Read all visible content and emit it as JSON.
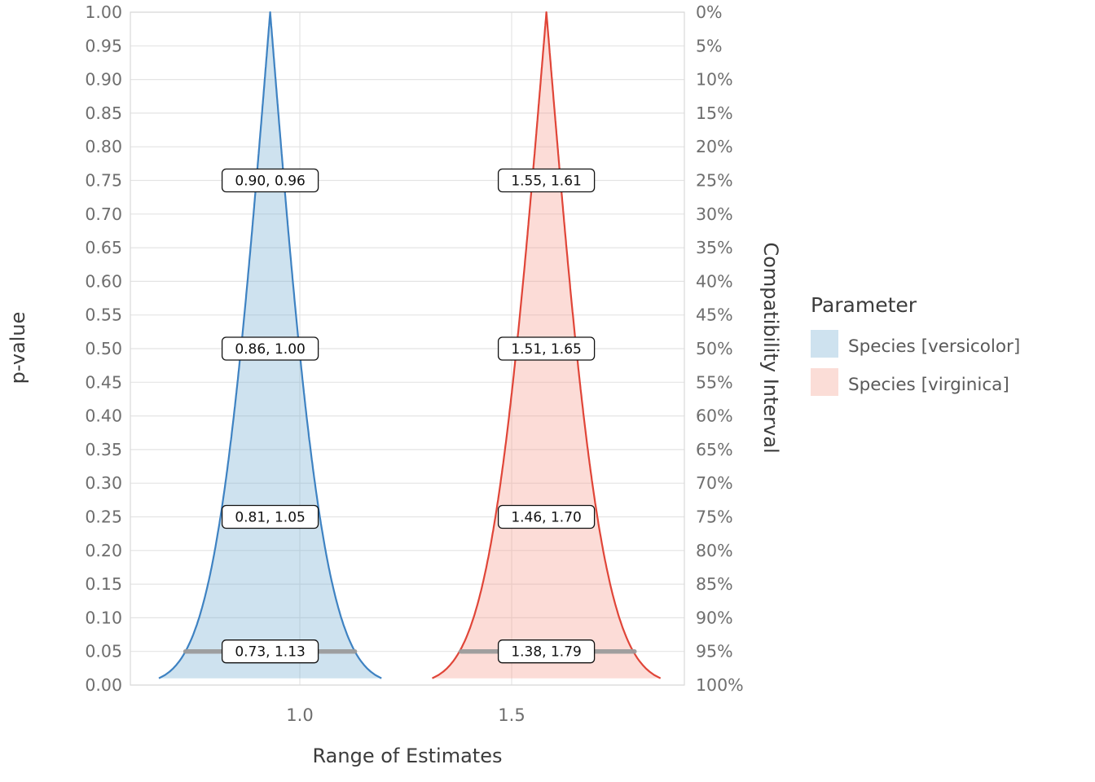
{
  "chart_data": {
    "type": "area",
    "variant": "consonance-pvalue-function",
    "title": "",
    "x_axis": {
      "title": "Range of Estimates",
      "ticks": [
        {
          "value": 1.0,
          "label": "1.0"
        },
        {
          "value": 1.5,
          "label": "1.5"
        }
      ],
      "range": [
        0.6,
        1.908
      ]
    },
    "y_axis_left": {
      "title": "p-value",
      "min": 0.0,
      "max": 1.0,
      "step": 0.05,
      "tick_labels": [
        "1.00",
        "0.95",
        "0.90",
        "0.85",
        "0.80",
        "0.75",
        "0.70",
        "0.65",
        "0.60",
        "0.55",
        "0.50",
        "0.45",
        "0.40",
        "0.35",
        "0.30",
        "0.25",
        "0.20",
        "0.15",
        "0.10",
        "0.05",
        "0.00"
      ]
    },
    "y_axis_right": {
      "title": "Compatibility Interval",
      "tick_labels": [
        "0%",
        "5%",
        "10%",
        "15%",
        "20%",
        "25%",
        "30%",
        "35%",
        "40%",
        "45%",
        "50%",
        "55%",
        "60%",
        "65%",
        "70%",
        "75%",
        "80%",
        "85%",
        "90%",
        "95%",
        "100%"
      ]
    },
    "legend": {
      "title": "Parameter"
    },
    "colors": {
      "grid": "#e4e4e4",
      "panel_border": "#d9d9d9",
      "tick_text": "#6e6e6e",
      "axis_title_text": "#3c3c3c",
      "legend_text": "#5a5a5a",
      "ci_segment": "#9b9b9b",
      "label_box_fill": "#ffffff",
      "label_box_border": "#111111",
      "label_text": "#111111"
    },
    "curve_p_range": [
      0.01,
      1.0
    ],
    "series": [
      {
        "name": "Species [versicolor]",
        "estimate": 0.93,
        "se": 0.102,
        "line_color": "#3e82c2",
        "fill_color": "#74add1",
        "fill_opacity": 0.35,
        "swatch_color": "#cee2ef",
        "intervals": [
          {
            "p_value": 0.75,
            "ci_level": "25%",
            "lower": 0.9,
            "upper": 0.96,
            "label": "0.90, 0.96"
          },
          {
            "p_value": 0.5,
            "ci_level": "50%",
            "lower": 0.86,
            "upper": 1.0,
            "label": "0.86, 1.00"
          },
          {
            "p_value": 0.25,
            "ci_level": "75%",
            "lower": 0.81,
            "upper": 1.05,
            "label": "0.81, 1.05"
          },
          {
            "p_value": 0.05,
            "ci_level": "95%",
            "lower": 0.73,
            "upper": 1.13,
            "label": "0.73, 1.13",
            "highlight_segment": true
          }
        ]
      },
      {
        "name": "Species [virginica]",
        "estimate": 1.582,
        "se": 0.1046,
        "line_color": "#e04538",
        "fill_color": "#f59a8c",
        "fill_opacity": 0.35,
        "swatch_color": "#fbddd7",
        "intervals": [
          {
            "p_value": 0.75,
            "ci_level": "25%",
            "lower": 1.55,
            "upper": 1.61,
            "label": "1.55, 1.61"
          },
          {
            "p_value": 0.5,
            "ci_level": "50%",
            "lower": 1.51,
            "upper": 1.65,
            "label": "1.51, 1.65"
          },
          {
            "p_value": 0.25,
            "ci_level": "75%",
            "lower": 1.46,
            "upper": 1.7,
            "label": "1.46, 1.70"
          },
          {
            "p_value": 0.05,
            "ci_level": "95%",
            "lower": 1.38,
            "upper": 1.79,
            "label": "1.38, 1.79",
            "highlight_segment": true
          }
        ]
      }
    ]
  }
}
